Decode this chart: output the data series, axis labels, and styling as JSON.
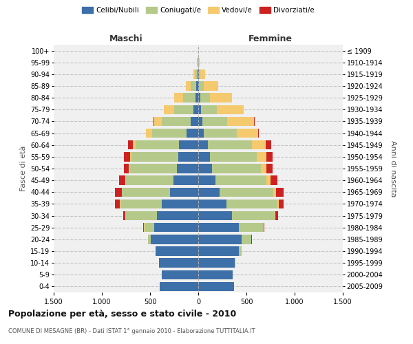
{
  "age_groups": [
    "0-4",
    "5-9",
    "10-14",
    "15-19",
    "20-24",
    "25-29",
    "30-34",
    "35-39",
    "40-44",
    "45-49",
    "50-54",
    "55-59",
    "60-64",
    "65-69",
    "70-74",
    "75-79",
    "80-84",
    "85-89",
    "90-94",
    "95-99",
    "100+"
  ],
  "birth_years": [
    "2005-2009",
    "2000-2004",
    "1995-1999",
    "1990-1994",
    "1985-1989",
    "1980-1984",
    "1975-1979",
    "1970-1974",
    "1965-1969",
    "1960-1964",
    "1955-1959",
    "1950-1954",
    "1945-1949",
    "1940-1944",
    "1935-1939",
    "1930-1934",
    "1925-1929",
    "1920-1924",
    "1915-1919",
    "1910-1914",
    "≤ 1909"
  ],
  "maschi": {
    "celibi": [
      400,
      380,
      410,
      440,
      490,
      460,
      430,
      380,
      290,
      260,
      220,
      210,
      200,
      120,
      80,
      50,
      30,
      20,
      10,
      2,
      0
    ],
    "coniugati": [
      0,
      0,
      0,
      5,
      30,
      100,
      320,
      430,
      500,
      490,
      490,
      480,
      450,
      360,
      300,
      200,
      130,
      60,
      20,
      5,
      0
    ],
    "vedovi": [
      0,
      0,
      0,
      0,
      0,
      5,
      5,
      5,
      5,
      10,
      15,
      20,
      30,
      60,
      80,
      110,
      90,
      50,
      20,
      5,
      0
    ],
    "divorziati": [
      0,
      0,
      0,
      0,
      5,
      10,
      25,
      50,
      70,
      60,
      50,
      60,
      50,
      5,
      5,
      0,
      0,
      0,
      0,
      0,
      0
    ]
  },
  "femmine": {
    "nubili": [
      370,
      360,
      380,
      420,
      450,
      420,
      350,
      290,
      220,
      180,
      140,
      120,
      100,
      60,
      40,
      30,
      20,
      10,
      5,
      2,
      0
    ],
    "coniugate": [
      0,
      0,
      5,
      30,
      100,
      250,
      440,
      530,
      560,
      530,
      510,
      490,
      460,
      340,
      260,
      160,
      100,
      50,
      15,
      5,
      0
    ],
    "vedove": [
      0,
      0,
      0,
      0,
      0,
      5,
      10,
      15,
      25,
      40,
      60,
      100,
      140,
      220,
      280,
      280,
      230,
      150,
      50,
      10,
      0
    ],
    "divorziate": [
      0,
      0,
      0,
      0,
      5,
      10,
      30,
      50,
      80,
      70,
      60,
      60,
      60,
      5,
      5,
      0,
      0,
      0,
      0,
      0,
      0
    ]
  },
  "colors": {
    "celibi_nubili": "#3d6fa8",
    "coniugati": "#b5c98a",
    "vedovi": "#f5c96e",
    "divorziati": "#cc2222"
  },
  "title": "Popolazione per età, sesso e stato civile - 2010",
  "subtitle": "COMUNE DI MESAGNE (BR) - Dati ISTAT 1° gennaio 2010 - Elaborazione TUTTITALIA.IT",
  "xlabel_left": "Maschi",
  "xlabel_right": "Femmine",
  "ylabel_left": "Fasce di età",
  "ylabel_right": "Anni di nascita",
  "xlim": 1500,
  "bg_color": "#ffffff",
  "grid_color": "#cccccc",
  "legend_labels": [
    "Celibi/Nubili",
    "Coniugati/e",
    "Vedovi/e",
    "Divorziati/e"
  ]
}
